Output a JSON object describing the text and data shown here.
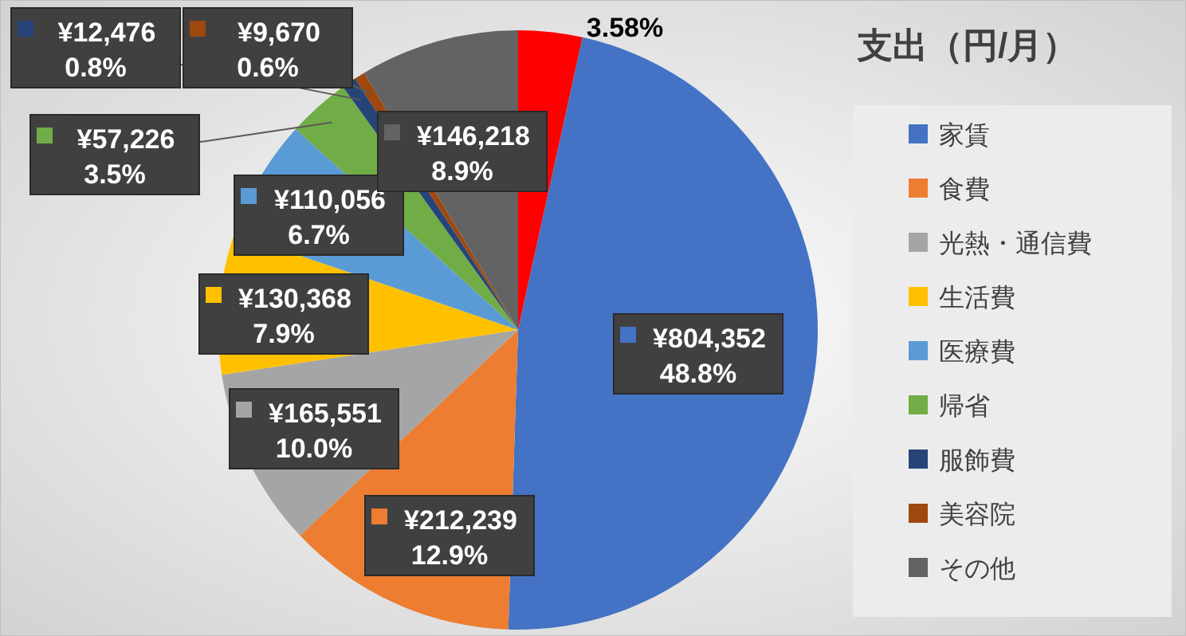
{
  "chart_data": {
    "type": "pie",
    "title": "支出（円/月）",
    "categories": [
      null,
      "家賃",
      "食費",
      "光熱・通信費",
      "生活費",
      "医療費",
      "帰省",
      "服飾費",
      "美容院",
      "その他"
    ],
    "values": [
      3.58,
      48.8,
      12.9,
      10.0,
      7.9,
      6.7,
      3.5,
      0.8,
      0.6,
      8.9
    ],
    "colors": [
      "#ff0000",
      "#4472c4",
      "#ed7d31",
      "#a5a5a5",
      "#ffc000",
      "#5b9bd5",
      "#70ad47",
      "#264478",
      "#9e480e",
      "#636363"
    ],
    "value_labels": [
      "3.58%",
      "¥804,352\n48.8%",
      "¥212,239\n12.9%",
      "¥165,551\n10.0%",
      "¥130,368\n7.9%",
      "¥110,056\n6.7%",
      "¥57,226\n3.5%",
      "¥12,476\n0.8%",
      "¥9,670\n0.6%",
      "¥146,218\n8.9%"
    ],
    "legend": "right"
  }
}
